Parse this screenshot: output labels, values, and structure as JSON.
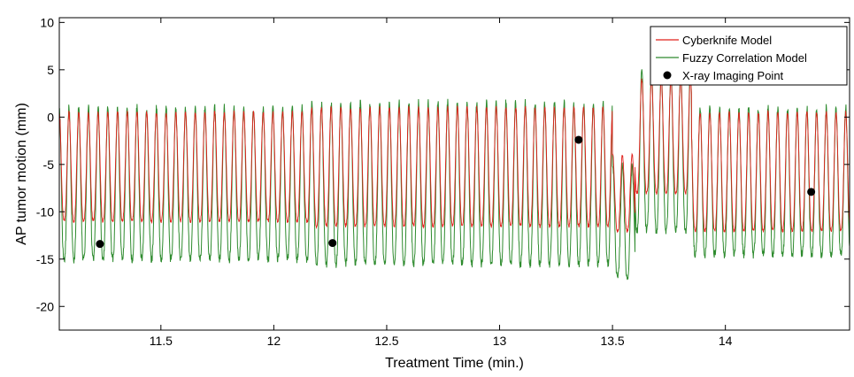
{
  "chart_data": {
    "type": "line",
    "xlabel": "Treatment Time (min.)",
    "ylabel": "AP tumor motion (mm)",
    "xlim": [
      11.05,
      14.55
    ],
    "ylim": [
      -22.5,
      10.5
    ],
    "x_ticks": [
      11.5,
      12,
      12.5,
      13,
      13.5,
      14
    ],
    "x_tick_labels": [
      "11.5",
      "12",
      "12.5",
      "13",
      "13.5",
      "14"
    ],
    "y_ticks": [
      10,
      5,
      0,
      -5,
      -10,
      -15,
      -20
    ],
    "y_tick_labels": [
      "10",
      "5",
      "0",
      "-5",
      "-10",
      "-15",
      "-20"
    ],
    "grid": false,
    "legend_position": "top-right",
    "series": [
      {
        "name": "Cyberknife Model",
        "color": "#e0201b",
        "style": "line",
        "description_period_min": 0.043,
        "segments": [
          {
            "x_start": 11.05,
            "x_end": 12.15,
            "peak": 0.5,
            "trough": -11.0
          },
          {
            "x_start": 12.15,
            "x_end": 13.5,
            "peak": 1.0,
            "trough": -11.5
          },
          {
            "x_start": 13.5,
            "x_end": 13.6,
            "peak": -4.0,
            "trough": -12.0
          },
          {
            "x_start": 13.6,
            "x_end": 13.85,
            "peak": 4.0,
            "trough": -8.0
          },
          {
            "x_start": 13.85,
            "x_end": 14.55,
            "peak": 0.5,
            "trough": -12.0
          }
        ]
      },
      {
        "name": "Fuzzy Correlation Model",
        "color": "#2e8b2e",
        "style": "line",
        "description_period_min": 0.043,
        "segments": [
          {
            "x_start": 11.05,
            "x_end": 12.15,
            "peak": 1.0,
            "trough": -15.0
          },
          {
            "x_start": 12.15,
            "x_end": 13.5,
            "peak": 1.5,
            "trough": -15.5
          },
          {
            "x_start": 13.5,
            "x_end": 13.6,
            "peak": -5.0,
            "trough": -17.0
          },
          {
            "x_start": 13.6,
            "x_end": 13.85,
            "peak": 5.0,
            "trough": -12.0
          },
          {
            "x_start": 13.85,
            "x_end": 14.55,
            "peak": 1.0,
            "trough": -14.5
          }
        ]
      },
      {
        "name": "X-ray Imaging Point",
        "color": "#000000",
        "style": "scatter",
        "points": [
          {
            "x": 11.23,
            "y": -13.4
          },
          {
            "x": 12.26,
            "y": -13.3
          },
          {
            "x": 13.35,
            "y": -2.4
          },
          {
            "x": 14.38,
            "y": -7.9
          }
        ]
      }
    ]
  }
}
